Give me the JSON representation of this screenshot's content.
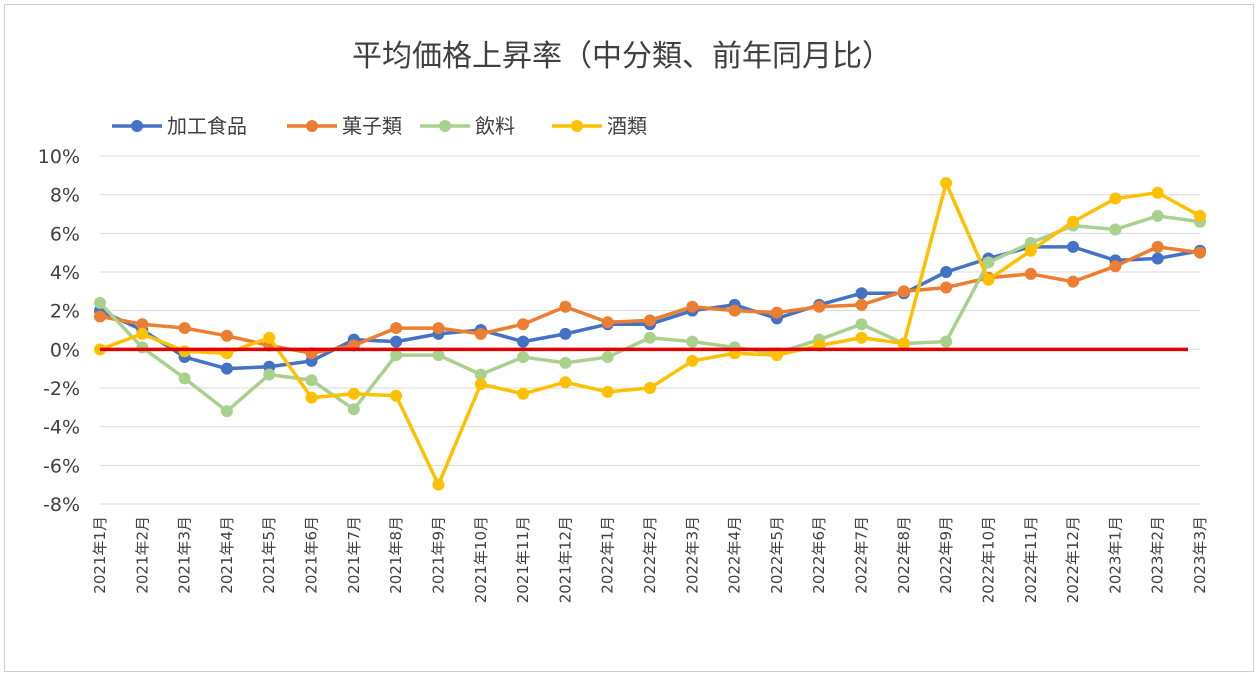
{
  "chart_data": {
    "type": "line",
    "title": "平均価格上昇率（中分類、前年同月比）",
    "xlabel": "",
    "ylabel": "",
    "ylim": [
      -8,
      10
    ],
    "y_ticks": [
      "10%",
      "8%",
      "6%",
      "4%",
      "2%",
      "0%",
      "-2%",
      "-4%",
      "-6%",
      "-8%"
    ],
    "y_tick_values": [
      10,
      8,
      6,
      4,
      2,
      0,
      -2,
      -4,
      -6,
      -8
    ],
    "grid": true,
    "legend_position": "top-left",
    "categories": [
      "2021年1月",
      "2021年2月",
      "2021年3月",
      "2021年4月",
      "2021年5月",
      "2021年6月",
      "2021年7月",
      "2021年8月",
      "2021年9月",
      "2021年10月",
      "2021年11月",
      "2021年12月",
      "2022年1月",
      "2022年2月",
      "2022年3月",
      "2022年4月",
      "2022年5月",
      "2022年6月",
      "2022年7月",
      "2022年8月",
      "2022年9月",
      "2022年10月",
      "2022年11月",
      "2022年12月",
      "2023年1月",
      "2023年2月",
      "2023年3月"
    ],
    "series": [
      {
        "name": "加工食品",
        "color": "#4472C4",
        "values": [
          2.0,
          1.0,
          -0.4,
          -1.0,
          -0.9,
          -0.6,
          0.5,
          0.4,
          0.8,
          1.0,
          0.4,
          0.8,
          1.3,
          1.3,
          2.0,
          2.3,
          1.6,
          2.3,
          2.9,
          2.9,
          4.0,
          4.7,
          5.3,
          5.3,
          4.6,
          4.7,
          5.1
        ]
      },
      {
        "name": "菓子類",
        "color": "#ED7D31",
        "values": [
          1.7,
          1.3,
          1.1,
          0.7,
          0.2,
          -0.2,
          0.2,
          1.1,
          1.1,
          0.8,
          1.3,
          2.2,
          1.4,
          1.5,
          2.2,
          2.0,
          1.9,
          2.2,
          2.3,
          3.0,
          3.2,
          3.7,
          3.9,
          3.5,
          4.3,
          5.3,
          5.0
        ]
      },
      {
        "name": "飲料",
        "color": "#A9D18E",
        "values": [
          2.4,
          0.1,
          -1.5,
          -3.2,
          -1.3,
          -1.6,
          -3.1,
          -0.3,
          -0.3,
          -1.3,
          -0.4,
          -0.7,
          -0.4,
          0.6,
          0.4,
          0.1,
          -0.2,
          0.5,
          1.3,
          0.3,
          0.4,
          4.5,
          5.5,
          6.4,
          6.2,
          6.9,
          6.6
        ]
      },
      {
        "name": "酒類",
        "color": "#FFC000",
        "values": [
          0.0,
          0.8,
          -0.1,
          -0.2,
          0.6,
          -2.5,
          -2.3,
          -2.4,
          -7.0,
          -1.8,
          -2.3,
          -1.7,
          -2.2,
          -2.0,
          -0.6,
          -0.2,
          -0.3,
          0.2,
          0.6,
          0.3,
          8.6,
          3.6,
          5.1,
          6.6,
          7.8,
          8.1,
          6.9
        ]
      }
    ],
    "reference_line": {
      "value": 0,
      "color": "#E00000"
    }
  }
}
